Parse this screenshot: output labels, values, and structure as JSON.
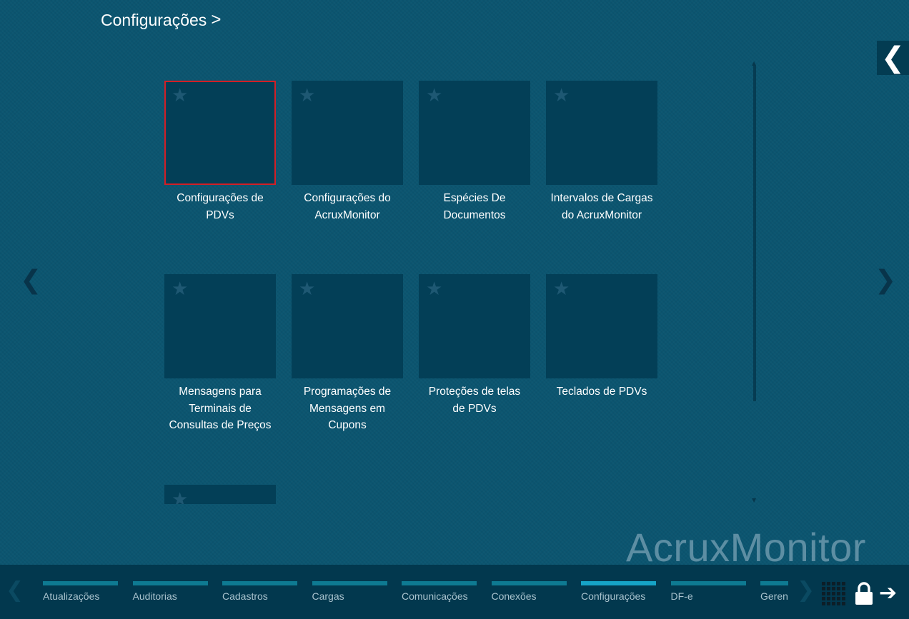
{
  "header": {
    "title": "Configurações",
    "chevron": ">"
  },
  "tiles": [
    {
      "label": "Configurações de PDVs",
      "selected": true
    },
    {
      "label": "Configurações do AcruxMonitor"
    },
    {
      "label": "Espécies De Documentos"
    },
    {
      "label": "Intervalos de Cargas do AcruxMonitor"
    },
    {
      "label": "Mensagens para Terminais de Consultas de Preços"
    },
    {
      "label": "Programações de Mensagens em Cupons"
    },
    {
      "label": "Proteções de telas de PDVs"
    },
    {
      "label": "Teclados de PDVs"
    },
    {
      "label": ""
    }
  ],
  "brand": "AcruxMonitor",
  "nav": {
    "back": "❮",
    "prev": "❮",
    "next": "❯"
  },
  "bottom": {
    "tabs": [
      {
        "label": "Atualizações"
      },
      {
        "label": "Auditorias"
      },
      {
        "label": "Cadastros"
      },
      {
        "label": "Cargas"
      },
      {
        "label": "Comunicações"
      },
      {
        "label": "Conexões"
      },
      {
        "label": "Configurações",
        "active": true
      },
      {
        "label": "DF-e"
      },
      {
        "label": "Gerenciamento"
      }
    ],
    "prev": "❮",
    "next": "❯",
    "logout": "➔"
  },
  "colors": {
    "background": "#0b5570",
    "tile": "#033f57",
    "selected": "#d21f26",
    "active_tab": "#16a3c6"
  }
}
